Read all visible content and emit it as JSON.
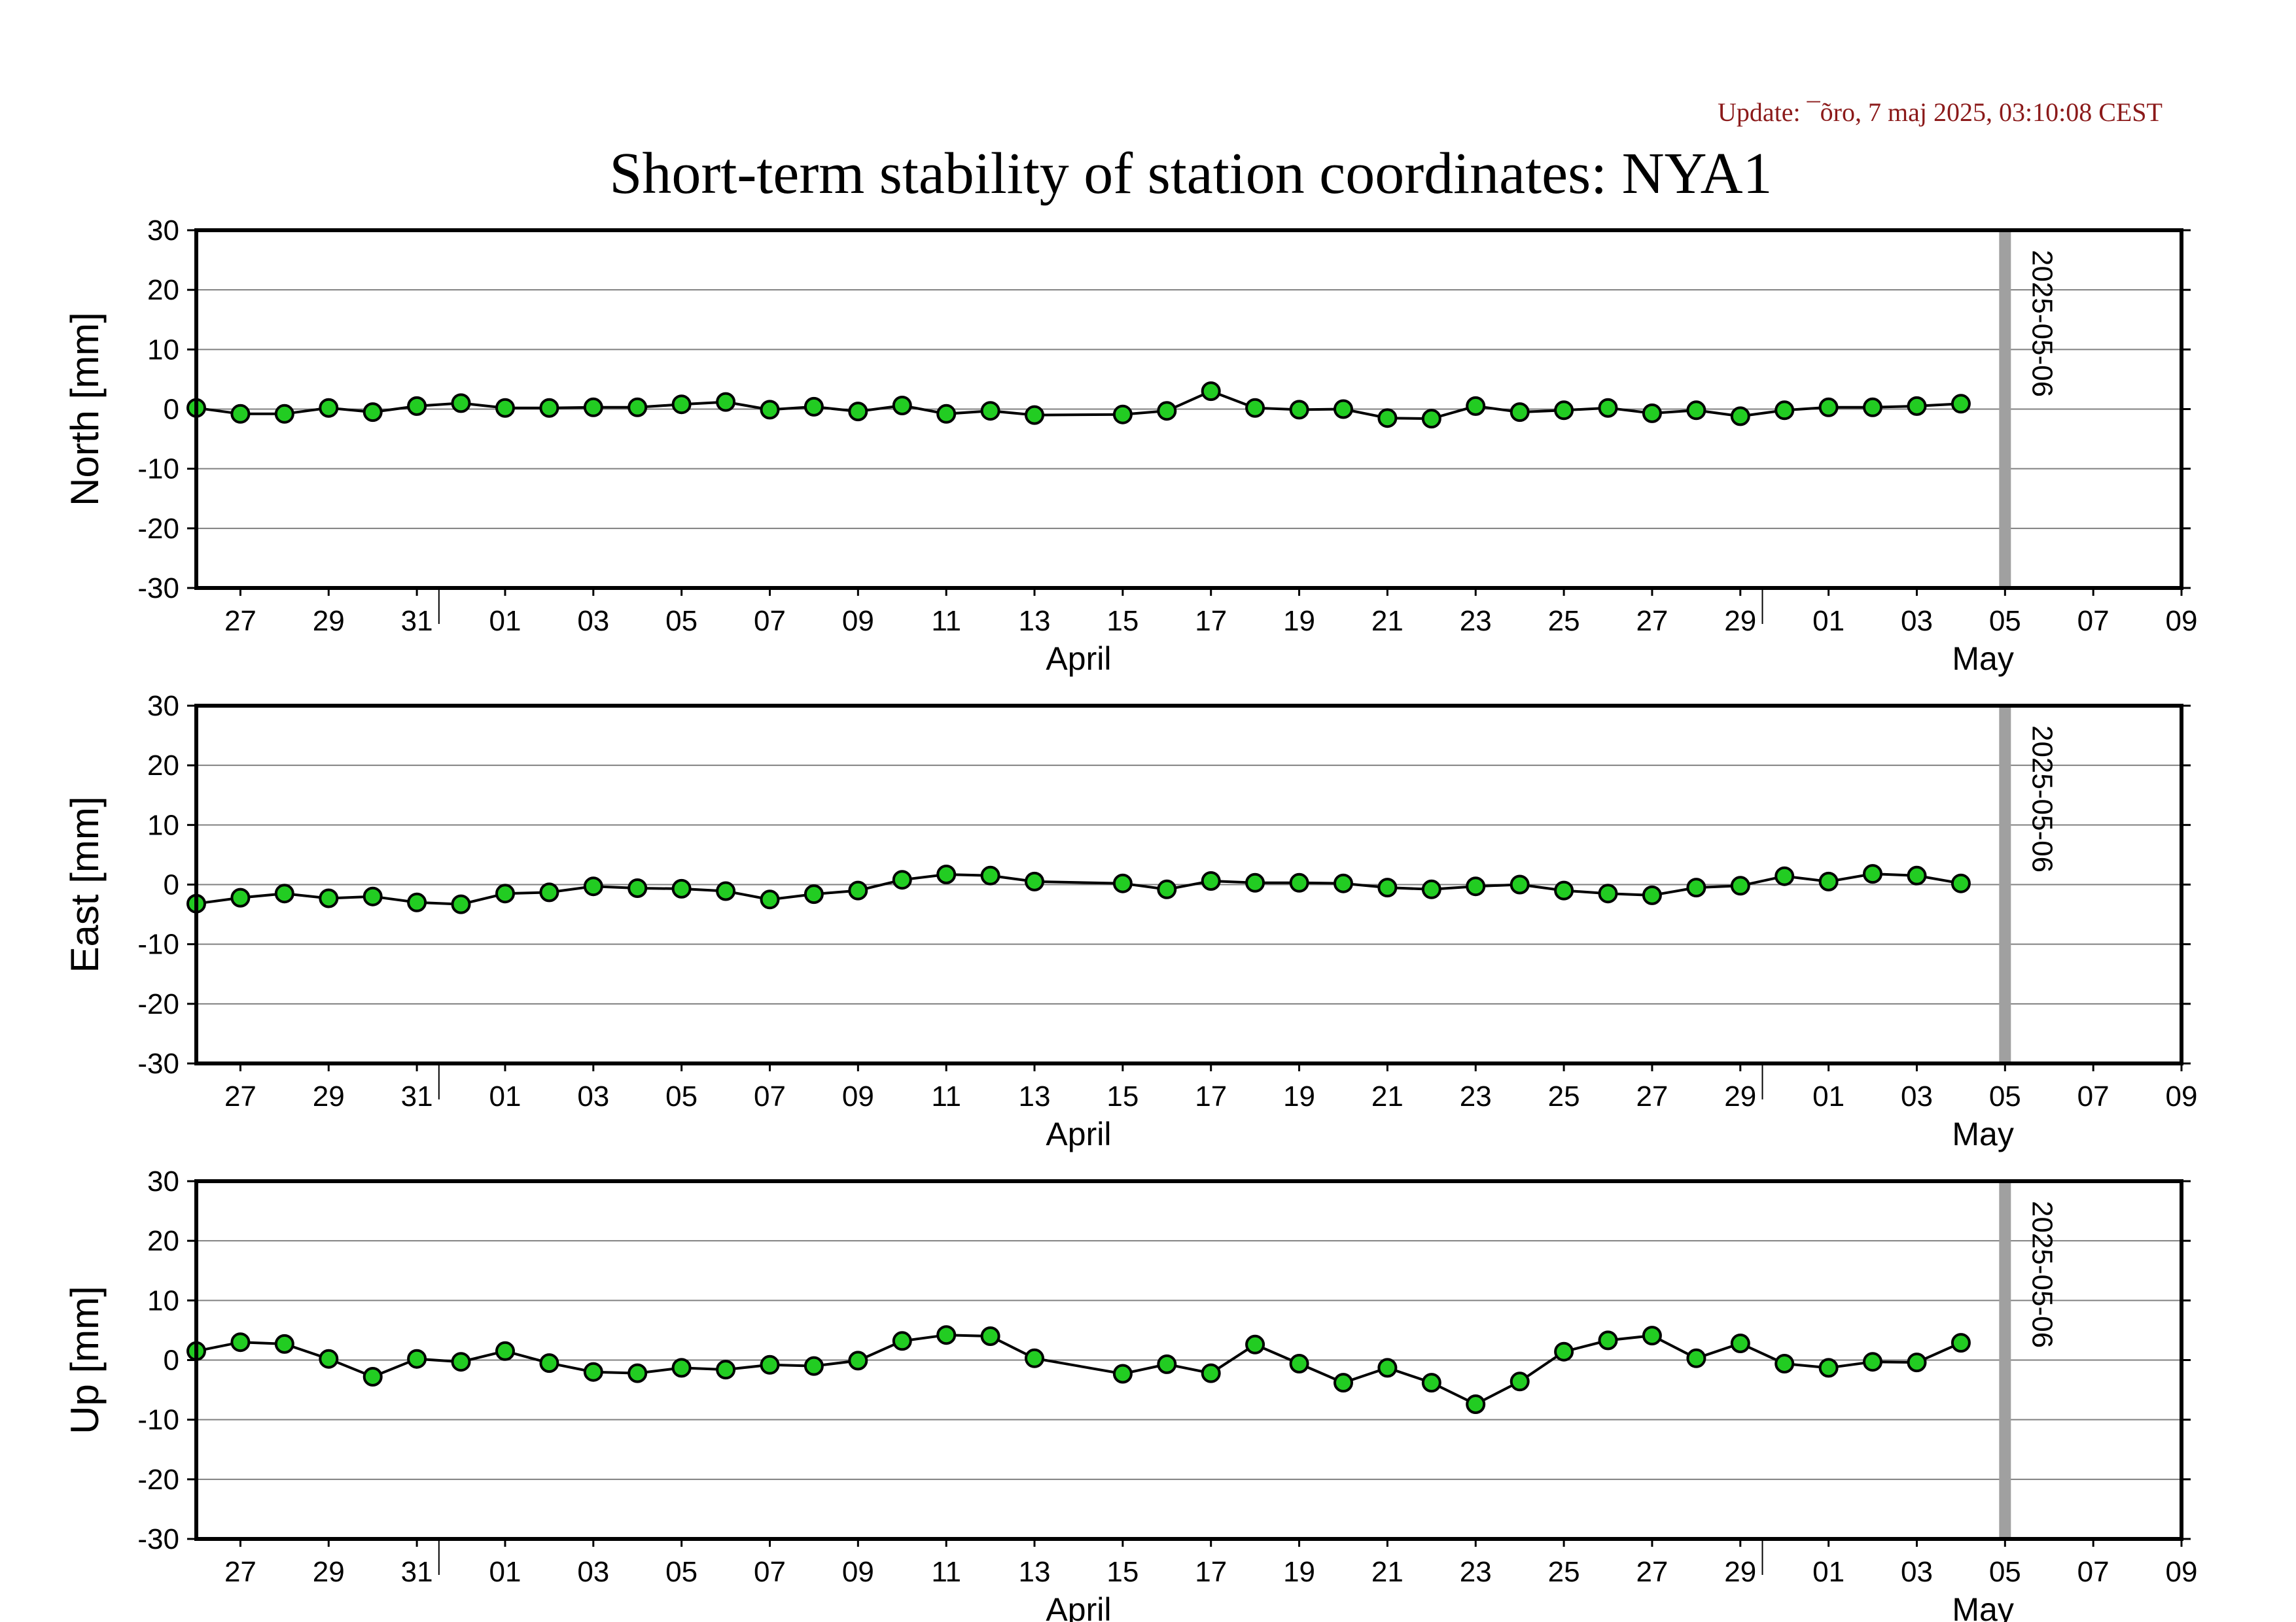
{
  "update_text": "Update: ¯õro, 7 maj 2025, 03:10:08 CEST",
  "title": "Short-term stability of station coordinates: NYA1",
  "chart_data": [
    {
      "type": "line",
      "ylabel": "North [mm]",
      "ylim": [
        -30,
        30
      ],
      "yticks": [
        30,
        20,
        10,
        0,
        -10,
        -20,
        -30
      ],
      "x_start": "2025-03-26",
      "x_end": "2025-05-10",
      "xtick_labels": [
        "27",
        "29",
        "31",
        "01",
        "03",
        "05",
        "07",
        "09",
        "11",
        "13",
        "15",
        "17",
        "19",
        "21",
        "23",
        "25",
        "27",
        "29",
        "01",
        "03",
        "05",
        "07",
        "09"
      ],
      "month_labels": [
        "April",
        "May"
      ],
      "marker": {
        "date": "2025-05-06",
        "label": "2025-05-06",
        "color": "#a0a0a0"
      },
      "point_color": "#22cc22",
      "series": [
        {
          "x": [
            "2025-03-26",
            "2025-03-27",
            "2025-03-28",
            "2025-03-29",
            "2025-03-30",
            "2025-03-31",
            "2025-04-01",
            "2025-04-02",
            "2025-04-03",
            "2025-04-04",
            "2025-04-05",
            "2025-04-06",
            "2025-04-07",
            "2025-04-08",
            "2025-04-09",
            "2025-04-10",
            "2025-04-11",
            "2025-04-12",
            "2025-04-13",
            "2025-04-14",
            "2025-04-16",
            "2025-04-17",
            "2025-04-18",
            "2025-04-19",
            "2025-04-20",
            "2025-04-21",
            "2025-04-22",
            "2025-04-23",
            "2025-04-24",
            "2025-04-25",
            "2025-04-26",
            "2025-04-27",
            "2025-04-28",
            "2025-04-29",
            "2025-04-30",
            "2025-05-01",
            "2025-05-02",
            "2025-05-03",
            "2025-05-04",
            "2025-05-05"
          ],
          "values": [
            0.2,
            -0.8,
            -0.8,
            0.2,
            -0.5,
            0.5,
            1.0,
            0.2,
            0.2,
            0.3,
            0.3,
            0.8,
            1.2,
            -0.1,
            0.4,
            -0.4,
            0.6,
            -0.8,
            -0.3,
            -1.0,
            -0.9,
            -0.3,
            3.0,
            0.2,
            -0.1,
            0.0,
            -1.5,
            -1.6,
            0.5,
            -0.5,
            -0.2,
            0.2,
            -0.7,
            -0.2,
            -1.2,
            -0.2,
            0.3,
            0.3,
            0.5,
            0.9
          ]
        }
      ]
    },
    {
      "type": "line",
      "ylabel": "East [mm]",
      "ylim": [
        -30,
        30
      ],
      "yticks": [
        30,
        20,
        10,
        0,
        -10,
        -20,
        -30
      ],
      "x_start": "2025-03-26",
      "x_end": "2025-05-10",
      "xtick_labels": [
        "27",
        "29",
        "31",
        "01",
        "03",
        "05",
        "07",
        "09",
        "11",
        "13",
        "15",
        "17",
        "19",
        "21",
        "23",
        "25",
        "27",
        "29",
        "01",
        "03",
        "05",
        "07",
        "09"
      ],
      "month_labels": [
        "April",
        "May"
      ],
      "marker": {
        "date": "2025-05-06",
        "label": "2025-05-06",
        "color": "#a0a0a0"
      },
      "point_color": "#22cc22",
      "series": [
        {
          "x": [
            "2025-03-26",
            "2025-03-27",
            "2025-03-28",
            "2025-03-29",
            "2025-03-30",
            "2025-03-31",
            "2025-04-01",
            "2025-04-02",
            "2025-04-03",
            "2025-04-04",
            "2025-04-05",
            "2025-04-06",
            "2025-04-07",
            "2025-04-08",
            "2025-04-09",
            "2025-04-10",
            "2025-04-11",
            "2025-04-12",
            "2025-04-13",
            "2025-04-14",
            "2025-04-16",
            "2025-04-17",
            "2025-04-18",
            "2025-04-19",
            "2025-04-20",
            "2025-04-21",
            "2025-04-22",
            "2025-04-23",
            "2025-04-24",
            "2025-04-25",
            "2025-04-26",
            "2025-04-27",
            "2025-04-28",
            "2025-04-29",
            "2025-04-30",
            "2025-05-01",
            "2025-05-02",
            "2025-05-03",
            "2025-05-04",
            "2025-05-05"
          ],
          "values": [
            -3.2,
            -2.2,
            -1.5,
            -2.3,
            -2.0,
            -3.0,
            -3.3,
            -1.5,
            -1.3,
            -0.3,
            -0.6,
            -0.7,
            -1.1,
            -2.5,
            -1.6,
            -1.0,
            0.8,
            1.7,
            1.5,
            0.5,
            0.2,
            -0.8,
            0.6,
            0.3,
            0.3,
            0.2,
            -0.5,
            -0.8,
            -0.3,
            0.0,
            -1.0,
            -1.5,
            -1.8,
            -0.5,
            -0.2,
            1.4,
            0.5,
            1.8,
            1.5,
            0.2
          ]
        }
      ]
    },
    {
      "type": "line",
      "ylabel": "Up [mm]",
      "ylim": [
        -30,
        30
      ],
      "yticks": [
        30,
        20,
        10,
        0,
        -10,
        -20,
        -30
      ],
      "x_start": "2025-03-26",
      "x_end": "2025-05-10",
      "xtick_labels": [
        "27",
        "29",
        "31",
        "01",
        "03",
        "05",
        "07",
        "09",
        "11",
        "13",
        "15",
        "17",
        "19",
        "21",
        "23",
        "25",
        "27",
        "29",
        "01",
        "03",
        "05",
        "07",
        "09"
      ],
      "month_labels": [
        "April",
        "May"
      ],
      "marker": {
        "date": "2025-05-06",
        "label": "2025-05-06",
        "color": "#a0a0a0"
      },
      "point_color": "#22cc22",
      "series": [
        {
          "x": [
            "2025-03-26",
            "2025-03-27",
            "2025-03-28",
            "2025-03-29",
            "2025-03-30",
            "2025-03-31",
            "2025-04-01",
            "2025-04-02",
            "2025-04-03",
            "2025-04-04",
            "2025-04-05",
            "2025-04-06",
            "2025-04-07",
            "2025-04-08",
            "2025-04-09",
            "2025-04-10",
            "2025-04-11",
            "2025-04-12",
            "2025-04-13",
            "2025-04-14",
            "2025-04-16",
            "2025-04-17",
            "2025-04-18",
            "2025-04-19",
            "2025-04-20",
            "2025-04-21",
            "2025-04-22",
            "2025-04-23",
            "2025-04-24",
            "2025-04-25",
            "2025-04-26",
            "2025-04-27",
            "2025-04-28",
            "2025-04-29",
            "2025-04-30",
            "2025-05-01",
            "2025-05-02",
            "2025-05-03",
            "2025-05-04",
            "2025-05-05"
          ],
          "values": [
            1.5,
            3.0,
            2.7,
            0.2,
            -2.8,
            0.2,
            -0.3,
            1.5,
            -0.5,
            -2.0,
            -2.2,
            -1.3,
            -1.6,
            -0.8,
            -1.0,
            -0.1,
            3.2,
            4.2,
            4.0,
            0.3,
            -2.3,
            -0.7,
            -2.2,
            2.6,
            -0.6,
            -3.8,
            -1.3,
            -3.8,
            -7.4,
            -3.6,
            1.4,
            3.3,
            4.1,
            0.3,
            2.8,
            -0.6,
            -1.3,
            -0.3,
            -0.4,
            2.9
          ]
        }
      ]
    }
  ]
}
